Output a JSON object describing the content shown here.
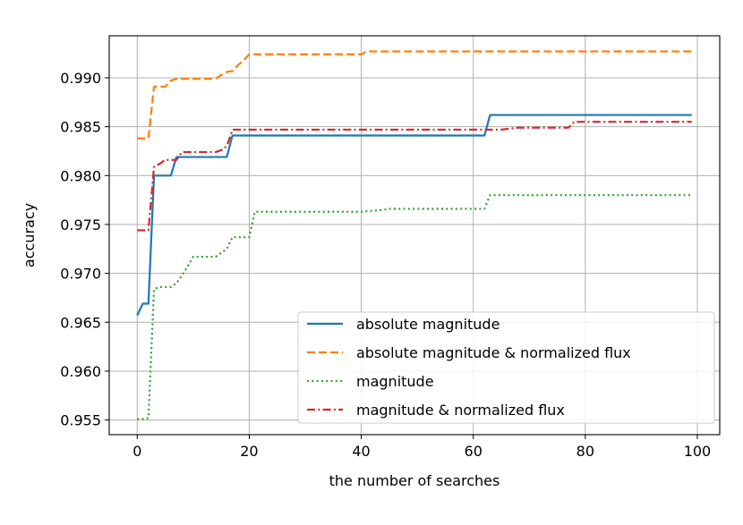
{
  "chart_data": {
    "type": "line",
    "title": "",
    "xlabel": "the number of searches",
    "ylabel": "accuracy",
    "xlim": [
      -5,
      104
    ],
    "ylim": [
      0.9535,
      0.9943
    ],
    "x_ticks": [
      0,
      20,
      40,
      60,
      80,
      100
    ],
    "x_tick_labels": [
      "0",
      "20",
      "40",
      "60",
      "80",
      "100"
    ],
    "y_ticks": [
      0.955,
      0.96,
      0.965,
      0.97,
      0.975,
      0.98,
      0.985,
      0.99
    ],
    "y_tick_labels": [
      "0.955",
      "0.960",
      "0.965",
      "0.970",
      "0.975",
      "0.980",
      "0.985",
      "0.990"
    ],
    "grid": true,
    "legend_position": "lower-right",
    "series": [
      {
        "name": "absolute magnitude",
        "color": "#1f77b4",
        "dash": "solid",
        "points": [
          [
            0,
            0.9657
          ],
          [
            1,
            0.9669
          ],
          [
            2,
            0.9669
          ],
          [
            3,
            0.98
          ],
          [
            4,
            0.98
          ],
          [
            5,
            0.98
          ],
          [
            6,
            0.98
          ],
          [
            7,
            0.9819
          ],
          [
            8,
            0.9819
          ],
          [
            10,
            0.9819
          ],
          [
            12,
            0.9819
          ],
          [
            14,
            0.9819
          ],
          [
            16,
            0.9819
          ],
          [
            17,
            0.9841
          ],
          [
            20,
            0.9841
          ],
          [
            30,
            0.9841
          ],
          [
            40,
            0.9841
          ],
          [
            50,
            0.9841
          ],
          [
            60,
            0.9841
          ],
          [
            62,
            0.9841
          ],
          [
            63,
            0.9862
          ],
          [
            70,
            0.9862
          ],
          [
            80,
            0.9862
          ],
          [
            90,
            0.9862
          ],
          [
            99,
            0.9862
          ]
        ]
      },
      {
        "name": "absolute magnitude & normalized flux",
        "color": "#ff7f0e",
        "dash": "dashed",
        "points": [
          [
            0,
            0.9838
          ],
          [
            1,
            0.9838
          ],
          [
            2,
            0.9838
          ],
          [
            3,
            0.9891
          ],
          [
            4,
            0.9891
          ],
          [
            5,
            0.9891
          ],
          [
            6,
            0.9897
          ],
          [
            7,
            0.9899
          ],
          [
            8,
            0.9899
          ],
          [
            10,
            0.9899
          ],
          [
            12,
            0.9899
          ],
          [
            14,
            0.9899
          ],
          [
            15,
            0.9903
          ],
          [
            16,
            0.9906
          ],
          [
            17,
            0.9907
          ],
          [
            18,
            0.9913
          ],
          [
            19,
            0.9918
          ],
          [
            20,
            0.9924
          ],
          [
            25,
            0.9924
          ],
          [
            30,
            0.9924
          ],
          [
            40,
            0.9924
          ],
          [
            41,
            0.9927
          ],
          [
            50,
            0.9927
          ],
          [
            60,
            0.9927
          ],
          [
            70,
            0.9927
          ],
          [
            80,
            0.9927
          ],
          [
            90,
            0.9927
          ],
          [
            99,
            0.9927
          ]
        ]
      },
      {
        "name": "magnitude",
        "color": "#2ca02c",
        "dash": "dotted",
        "points": [
          [
            0,
            0.9551
          ],
          [
            1,
            0.9551
          ],
          [
            2,
            0.9552
          ],
          [
            3,
            0.9684
          ],
          [
            4,
            0.9686
          ],
          [
            5,
            0.9686
          ],
          [
            6,
            0.9686
          ],
          [
            7,
            0.969
          ],
          [
            8,
            0.9698
          ],
          [
            9,
            0.9707
          ],
          [
            10,
            0.9717
          ],
          [
            12,
            0.9717
          ],
          [
            14,
            0.9717
          ],
          [
            15,
            0.9721
          ],
          [
            16,
            0.9725
          ],
          [
            17,
            0.9737
          ],
          [
            18,
            0.9737
          ],
          [
            19,
            0.9737
          ],
          [
            20,
            0.9737
          ],
          [
            21,
            0.9763
          ],
          [
            25,
            0.9763
          ],
          [
            30,
            0.9763
          ],
          [
            40,
            0.9763
          ],
          [
            44,
            0.9765
          ],
          [
            45,
            0.9766
          ],
          [
            50,
            0.9766
          ],
          [
            55,
            0.9766
          ],
          [
            60,
            0.9766
          ],
          [
            62,
            0.9766
          ],
          [
            63,
            0.978
          ],
          [
            70,
            0.978
          ],
          [
            80,
            0.978
          ],
          [
            90,
            0.978
          ],
          [
            99,
            0.978
          ]
        ]
      },
      {
        "name": "magnitude & normalized flux",
        "color": "#d62728",
        "dash": "dashdot",
        "points": [
          [
            0,
            0.9744
          ],
          [
            1,
            0.9744
          ],
          [
            2,
            0.9744
          ],
          [
            3,
            0.9809
          ],
          [
            4,
            0.9812
          ],
          [
            5,
            0.9816
          ],
          [
            6,
            0.9816
          ],
          [
            7,
            0.9816
          ],
          [
            8,
            0.9824
          ],
          [
            10,
            0.9824
          ],
          [
            12,
            0.9824
          ],
          [
            14,
            0.9824
          ],
          [
            15,
            0.9826
          ],
          [
            16,
            0.983
          ],
          [
            17,
            0.9847
          ],
          [
            20,
            0.9847
          ],
          [
            30,
            0.9847
          ],
          [
            40,
            0.9847
          ],
          [
            50,
            0.9847
          ],
          [
            60,
            0.9847
          ],
          [
            65,
            0.9847
          ],
          [
            68,
            0.9849
          ],
          [
            70,
            0.9849
          ],
          [
            75,
            0.9849
          ],
          [
            77,
            0.9849
          ],
          [
            78,
            0.9855
          ],
          [
            80,
            0.9855
          ],
          [
            90,
            0.9855
          ],
          [
            99,
            0.9855
          ]
        ]
      }
    ]
  }
}
